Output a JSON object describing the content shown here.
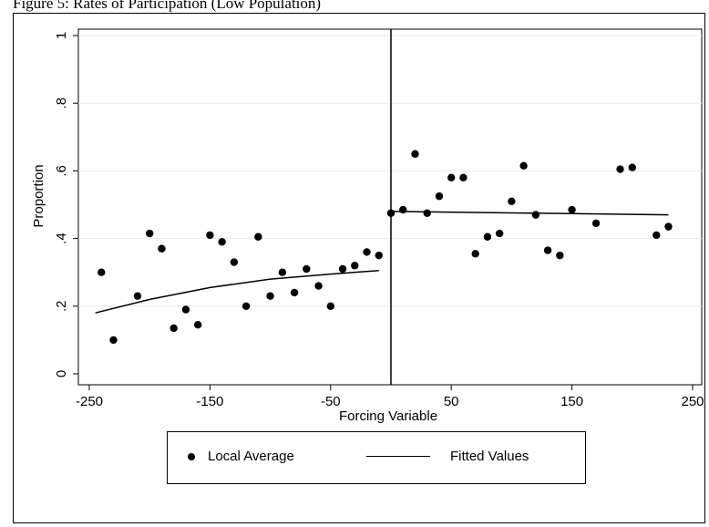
{
  "caption": "Figure 5: Rates of Participation (Low Population)",
  "chart_data": {
    "type": "scatter",
    "title": "",
    "xlabel": "Forcing Variable",
    "ylabel": "Proportion",
    "xlim": [
      -260,
      260
    ],
    "ylim": [
      0,
      1.0
    ],
    "xticks": [
      -250,
      -150,
      -50,
      50,
      150,
      250
    ],
    "xtick_labels": [
      "-250",
      "-150",
      "-50",
      "50",
      "150",
      "250"
    ],
    "yticks": [
      0,
      0.2,
      0.4,
      0.6,
      0.8,
      1.0
    ],
    "ytick_labels": [
      "0",
      ".2",
      ".4",
      ".6",
      ".8",
      "1"
    ],
    "grid": "horizontal",
    "cutoff_x": 0,
    "legend_position": "bottom",
    "series": [
      {
        "name": "Local Average",
        "style": "points",
        "points": [
          [
            -240,
            0.3
          ],
          [
            -230,
            0.1
          ],
          [
            -210,
            0.23
          ],
          [
            -200,
            0.415
          ],
          [
            -190,
            0.37
          ],
          [
            -180,
            0.135
          ],
          [
            -170,
            0.19
          ],
          [
            -160,
            0.145
          ],
          [
            -150,
            0.41
          ],
          [
            -140,
            0.39
          ],
          [
            -130,
            0.33
          ],
          [
            -120,
            0.2
          ],
          [
            -110,
            0.405
          ],
          [
            -100,
            0.23
          ],
          [
            -90,
            0.3
          ],
          [
            -80,
            0.24
          ],
          [
            -70,
            0.31
          ],
          [
            -60,
            0.26
          ],
          [
            -50,
            0.2
          ],
          [
            -40,
            0.31
          ],
          [
            -30,
            0.32
          ],
          [
            -20,
            0.36
          ],
          [
            -10,
            0.35
          ],
          [
            0,
            0.475
          ],
          [
            10,
            0.485
          ],
          [
            20,
            0.65
          ],
          [
            30,
            0.475
          ],
          [
            40,
            0.525
          ],
          [
            50,
            0.58
          ],
          [
            60,
            0.58
          ],
          [
            70,
            0.355
          ],
          [
            80,
            0.405
          ],
          [
            90,
            0.415
          ],
          [
            100,
            0.51
          ],
          [
            110,
            0.615
          ],
          [
            120,
            0.47
          ],
          [
            130,
            0.365
          ],
          [
            140,
            0.35
          ],
          [
            150,
            0.485
          ],
          [
            170,
            0.445
          ],
          [
            190,
            0.605
          ],
          [
            200,
            0.61
          ],
          [
            220,
            0.41
          ],
          [
            230,
            0.435
          ]
        ]
      },
      {
        "name": "Fitted Values",
        "style": "lines",
        "segments": [
          [
            [
              -245,
              0.18
            ],
            [
              -200,
              0.22
            ],
            [
              -150,
              0.255
            ],
            [
              -100,
              0.28
            ],
            [
              -50,
              0.295
            ],
            [
              -10,
              0.305
            ]
          ],
          [
            [
              0,
              0.48
            ],
            [
              230,
              0.47
            ]
          ]
        ]
      }
    ]
  }
}
